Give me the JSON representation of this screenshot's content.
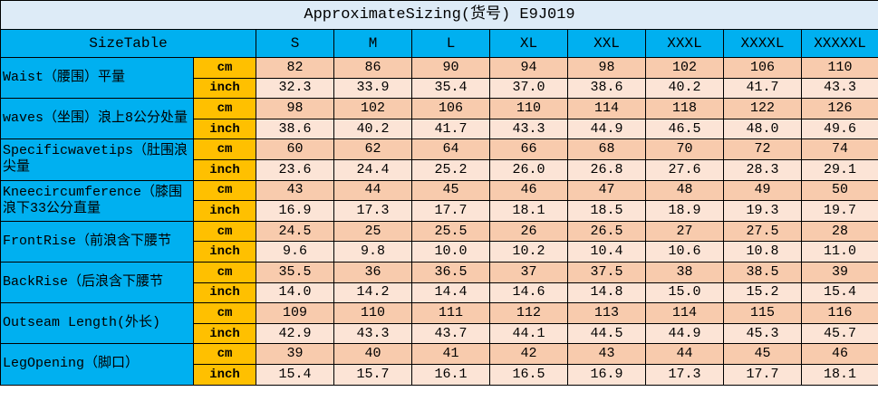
{
  "title": "ApproximateSizing(货号) E9J019",
  "header": {
    "label": "SizeTable",
    "sizes": [
      "S",
      "M",
      "L",
      "XL",
      "XXL",
      "XXXL",
      "XXXXL",
      "XXXXXL"
    ]
  },
  "rows": [
    {
      "label": "Waist（腰围）平量",
      "units": [
        {
          "unit": "cm",
          "values": [
            "82",
            "86",
            "90",
            "94",
            "98",
            "102",
            "106",
            "110"
          ]
        },
        {
          "unit": "inch",
          "values": [
            "32.3",
            "33.9",
            "35.4",
            "37.0",
            "38.6",
            "40.2",
            "41.7",
            "43.3"
          ]
        }
      ]
    },
    {
      "label": "waves（坐围）浪上8公分处量",
      "units": [
        {
          "unit": "cm",
          "values": [
            "98",
            "102",
            "106",
            "110",
            "114",
            "118",
            "122",
            "126"
          ]
        },
        {
          "unit": "inch",
          "values": [
            "38.6",
            "40.2",
            "41.7",
            "43.3",
            "44.9",
            "46.5",
            "48.0",
            "49.6"
          ]
        }
      ]
    },
    {
      "label": "Specificwavetips（肚围浪尖量",
      "units": [
        {
          "unit": "cm",
          "values": [
            "60",
            "62",
            "64",
            "66",
            "68",
            "70",
            "72",
            "74"
          ]
        },
        {
          "unit": "inch",
          "values": [
            "23.6",
            "24.4",
            "25.2",
            "26.0",
            "26.8",
            "27.6",
            "28.3",
            "29.1"
          ]
        }
      ]
    },
    {
      "label": "Kneecircumference（膝围浪下33公分直量",
      "units": [
        {
          "unit": "cm",
          "values": [
            "43",
            "44",
            "45",
            "46",
            "47",
            "48",
            "49",
            "50"
          ]
        },
        {
          "unit": "inch",
          "values": [
            "16.9",
            "17.3",
            "17.7",
            "18.1",
            "18.5",
            "18.9",
            "19.3",
            "19.7"
          ]
        }
      ]
    },
    {
      "label": "FrontRise（前浪含下腰节",
      "units": [
        {
          "unit": "cm",
          "values": [
            "24.5",
            "25",
            "25.5",
            "26",
            "26.5",
            "27",
            "27.5",
            "28"
          ]
        },
        {
          "unit": "inch",
          "values": [
            "9.6",
            "9.8",
            "10.0",
            "10.2",
            "10.4",
            "10.6",
            "10.8",
            "11.0"
          ]
        }
      ]
    },
    {
      "label": "BackRise（后浪含下腰节",
      "units": [
        {
          "unit": "cm",
          "values": [
            "35.5",
            "36",
            "36.5",
            "37",
            "37.5",
            "38",
            "38.5",
            "39"
          ]
        },
        {
          "unit": "inch",
          "values": [
            "14.0",
            "14.2",
            "14.4",
            "14.6",
            "14.8",
            "15.0",
            "15.2",
            "15.4"
          ]
        }
      ]
    },
    {
      "label": "Outseam Length(外长)",
      "units": [
        {
          "unit": "cm",
          "values": [
            "109",
            "110",
            "111",
            "112",
            "113",
            "114",
            "115",
            "116"
          ]
        },
        {
          "unit": "inch",
          "values": [
            "42.9",
            "43.3",
            "43.7",
            "44.1",
            "44.5",
            "44.9",
            "45.3",
            "45.7"
          ]
        }
      ]
    },
    {
      "label": "LegOpening（脚口）",
      "units": [
        {
          "unit": "cm",
          "values": [
            "39",
            "40",
            "41",
            "42",
            "43",
            "44",
            "45",
            "46"
          ]
        },
        {
          "unit": "inch",
          "values": [
            "15.4",
            "15.7",
            "16.1",
            "16.5",
            "16.9",
            "17.3",
            "17.7",
            "18.1"
          ]
        }
      ]
    }
  ]
}
